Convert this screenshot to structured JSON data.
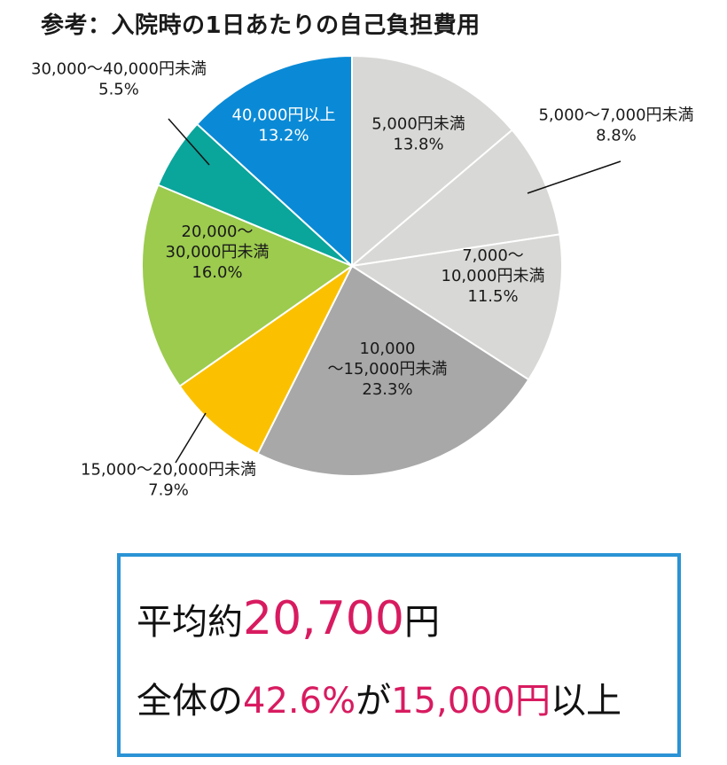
{
  "title": "参考：入院時の1日あたりの自己負担費用",
  "chart_data": {
    "type": "pie",
    "title": "参考：入院時の1日あたりの自己負担費用",
    "slices": [
      {
        "label": [
          "5,000円未満"
        ],
        "value": 13.8,
        "pct": "13.8%",
        "color": "#d8d8d6"
      },
      {
        "label": [
          "5,000～7,000円未満"
        ],
        "value": 8.8,
        "pct": "8.8%",
        "color": "#d8d8d6"
      },
      {
        "label": [
          "7,000～",
          "10,000円未満"
        ],
        "value": 11.5,
        "pct": "11.5%",
        "color": "#d8d8d6"
      },
      {
        "label": [
          "10,000",
          "～15,000円未満"
        ],
        "value": 23.3,
        "pct": "23.3%",
        "color": "#a8a8a8"
      },
      {
        "label": [
          "15,000～20,000円未満"
        ],
        "value": 7.9,
        "pct": "7.9%",
        "color": "#fbc100"
      },
      {
        "label": [
          "20,000～",
          "30,000円未満"
        ],
        "value": 16.0,
        "pct": "16.0%",
        "color": "#9ccb4e"
      },
      {
        "label": [
          "30,000～40,000円未満"
        ],
        "value": 5.5,
        "pct": "5.5%",
        "color": "#0aa59b"
      },
      {
        "label": [
          "40,000円以上"
        ],
        "value": 13.2,
        "pct": "13.2%",
        "color": "#0a8ad6"
      }
    ]
  },
  "summary": {
    "line1_prefix": "平均約",
    "line1_value": "20,700",
    "line1_suffix": "円",
    "line2_prefix": "全体の",
    "line2_pct": "42.6%",
    "line2_mid": "が",
    "line2_amount": "15,000円",
    "line2_suffix": "以上"
  },
  "colors": {
    "highlight": "#d81b60",
    "frame": "#2a93d5"
  }
}
